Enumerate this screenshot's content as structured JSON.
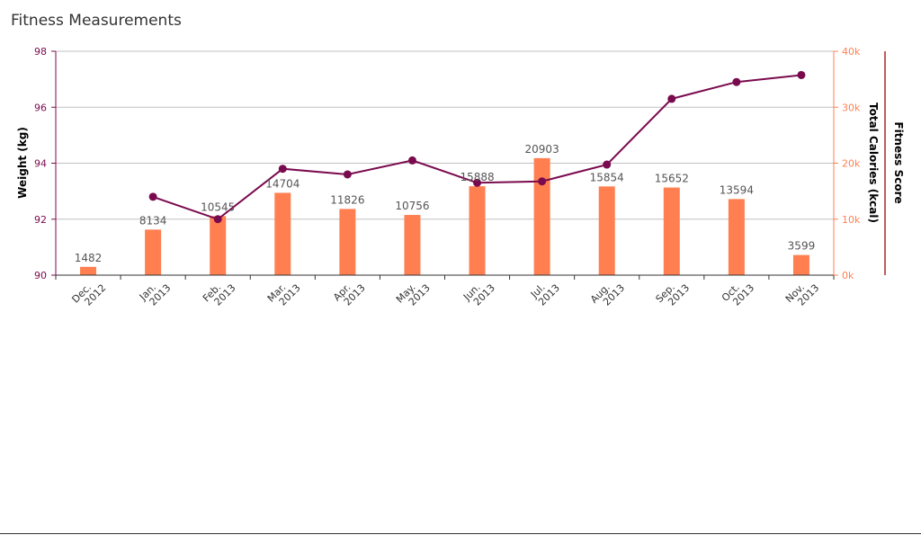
{
  "chart_data": {
    "type": "bar",
    "title": "Fitness Measurements",
    "categories": [
      [
        "Dec.",
        "2012"
      ],
      [
        "Jan.",
        "2013"
      ],
      [
        "Feb.",
        "2013"
      ],
      [
        "Mar.",
        "2013"
      ],
      [
        "Apr.",
        "2013"
      ],
      [
        "May.",
        "2013"
      ],
      [
        "Jun.",
        "2013"
      ],
      [
        "Jul.",
        "2013"
      ],
      [
        "Aug.",
        "2013"
      ],
      [
        "Sep.",
        "2013"
      ],
      [
        "Oct.",
        "2013"
      ],
      [
        "Nov.",
        "2013"
      ]
    ],
    "series": [
      {
        "name": "Total Calories (kcal)",
        "type": "bar",
        "axis": "right",
        "color": "#ff7f50",
        "values": [
          1482,
          8134,
          10545,
          14704,
          11826,
          10756,
          15888,
          20903,
          15854,
          15652,
          13594,
          3599
        ]
      },
      {
        "name": "Weight (kg)",
        "type": "line",
        "axis": "left",
        "color": "#7a0a4e",
        "values": [
          null,
          92.8,
          92.0,
          93.8,
          93.6,
          94.1,
          93.3,
          93.35,
          93.95,
          96.3,
          96.9,
          97.15
        ]
      }
    ],
    "y_left": {
      "label": "Weight (kg)",
      "range": [
        90,
        98
      ],
      "ticks": [
        90,
        92,
        94,
        96,
        98
      ],
      "tick_labels": [
        "90",
        "92",
        "94",
        "96",
        "98"
      ],
      "color": "#7a0a4e"
    },
    "y_right": {
      "label": "Total Calories (kcal)",
      "range": [
        0,
        40000
      ],
      "ticks": [
        0,
        10000,
        20000,
        30000,
        40000
      ],
      "tick_labels": [
        "0k",
        "10k",
        "20k",
        "30k",
        "40k"
      ],
      "color": "#ff7f50"
    },
    "y_right2": {
      "label": "Fitness Score",
      "color": "#a52a2a"
    },
    "grid": true,
    "colors": {
      "grid": "#c0c0c0",
      "axis": "#333333",
      "title": "#333333",
      "data_label": "#555555"
    }
  }
}
